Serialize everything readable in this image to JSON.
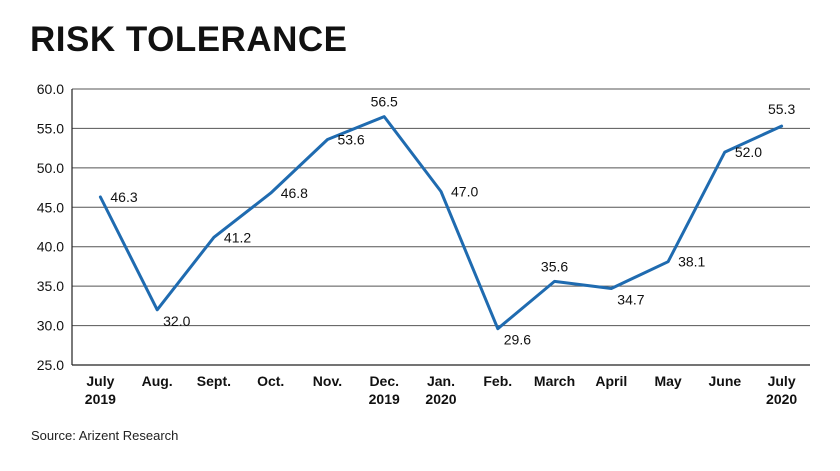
{
  "title": "RISK TOLERANCE",
  "source": "Source: Arizent Research",
  "colors": {
    "line": "#1f6bb0",
    "grid": "#555555",
    "axis": "#222222"
  },
  "chart_data": {
    "type": "line",
    "title": "RISK TOLERANCE",
    "categories": [
      [
        "July",
        "2019"
      ],
      [
        "Aug."
      ],
      [
        "Sept."
      ],
      [
        "Oct."
      ],
      [
        "Nov."
      ],
      [
        "Dec.",
        "2019"
      ],
      [
        "Jan.",
        "2020"
      ],
      [
        "Feb."
      ],
      [
        "March"
      ],
      [
        "April"
      ],
      [
        "May"
      ],
      [
        "June"
      ],
      [
        "July",
        "2020"
      ]
    ],
    "series": [
      {
        "values": [
          46.3,
          32.0,
          41.2,
          46.8,
          53.6,
          56.5,
          47.0,
          29.6,
          35.6,
          34.7,
          38.1,
          52.0,
          55.3
        ]
      }
    ],
    "labels": [
      "46.3",
      "32.0",
      "41.2",
      "46.8",
      "53.6",
      "56.5",
      "47.0",
      "29.6",
      "35.6",
      "34.7",
      "38.1",
      "52.0",
      "55.3"
    ],
    "yticks": [
      "25.0",
      "30.0",
      "35.0",
      "40.0",
      "45.0",
      "50.0",
      "55.0",
      "60.0"
    ],
    "ylim": [
      25,
      60
    ],
    "xlabel": "",
    "ylabel": "",
    "grid": true
  }
}
